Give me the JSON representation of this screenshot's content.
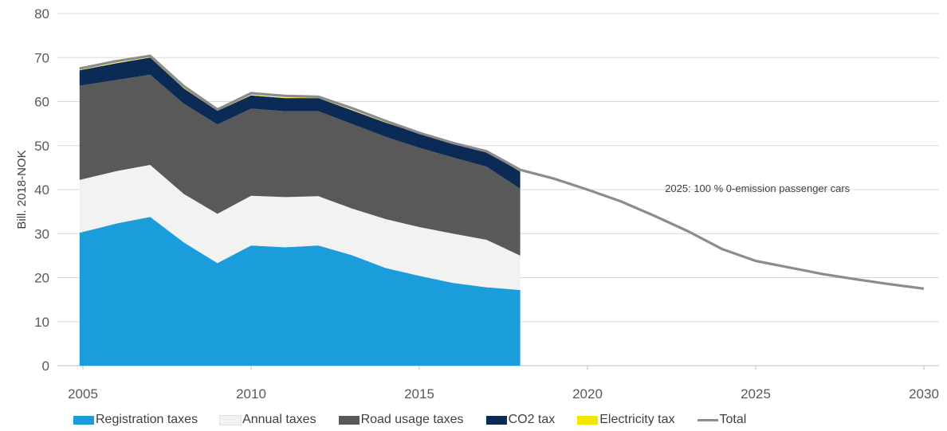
{
  "chart_data": {
    "type": "area",
    "title": "",
    "xlabel": "",
    "ylabel": "Bill. 2018-NOK",
    "xlim": [
      2005,
      2030
    ],
    "ylim": [
      0,
      80
    ],
    "x_ticks": [
      "2005",
      "2010",
      "2015",
      "2020",
      "2025",
      "2030"
    ],
    "y_ticks": [
      "0",
      "10",
      "20",
      "30",
      "40",
      "50",
      "60",
      "70",
      "80"
    ],
    "grid": "horizontal",
    "legend_position": "bottom",
    "stacked": true,
    "x": [
      2004.9,
      2006,
      2007,
      2008,
      2009,
      2010,
      2011,
      2012,
      2013,
      2014,
      2015,
      2016,
      2017,
      2018
    ],
    "series": [
      {
        "name": "Registration taxes",
        "color": "#1b9ddb",
        "values": [
          30.2,
          32.3,
          33.8,
          28.0,
          23.3,
          27.3,
          26.9,
          27.3,
          25.1,
          22.2,
          20.4,
          18.8,
          17.8,
          17.2
        ]
      },
      {
        "name": "Annual taxes",
        "color": "#f2f2f2",
        "values": [
          12.0,
          11.9,
          11.8,
          11.0,
          11.2,
          11.3,
          11.4,
          11.2,
          10.6,
          11.1,
          11.1,
          11.2,
          10.8,
          7.8
        ]
      },
      {
        "name": "Road usage taxes",
        "color": "#595959",
        "values": [
          21.4,
          20.7,
          20.5,
          20.5,
          20.3,
          19.8,
          19.5,
          19.3,
          19.2,
          18.7,
          18.0,
          17.3,
          16.6,
          15.2
        ]
      },
      {
        "name": "CO2 tax",
        "color": "#0b2a55",
        "values": [
          3.5,
          3.8,
          3.9,
          3.5,
          3.1,
          3.0,
          3.0,
          3.0,
          3.1,
          3.2,
          3.3,
          3.4,
          3.4,
          3.9
        ]
      },
      {
        "name": "Electricity tax",
        "color": "#f2e500",
        "values": [
          0.1,
          0.1,
          0.1,
          0.1,
          0.1,
          0.1,
          0.1,
          0.1,
          0.1,
          0.1,
          0.1,
          0.1,
          0.1,
          0.1
        ]
      }
    ],
    "total_line": {
      "name": "Total",
      "color": "#8c8c8c",
      "x": [
        2004.9,
        2006,
        2007,
        2008,
        2009,
        2010,
        2011,
        2012,
        2013,
        2014,
        2015,
        2016,
        2017,
        2018,
        2019,
        2020,
        2021,
        2022,
        2023,
        2024,
        2025,
        2026,
        2027,
        2028,
        2029,
        2030
      ],
      "values": [
        67.5,
        69.2,
        70.4,
        63.5,
        58.2,
        61.9,
        61.3,
        61.1,
        58.5,
        55.6,
        52.9,
        50.6,
        48.7,
        44.5,
        42.5,
        40.0,
        37.3,
        34.0,
        30.5,
        26.5,
        23.8,
        22.3,
        20.8,
        19.6,
        18.5,
        17.5
      ]
    },
    "annotations": [
      {
        "text": "2025: 100 % 0-emission passenger cars",
        "x": 2027.8,
        "y": 39.5
      }
    ]
  },
  "legend": [
    {
      "label": "Registration taxes",
      "color": "#1b9ddb",
      "kind": "box"
    },
    {
      "label": "Annual taxes",
      "color": "#f2f2f2",
      "kind": "box"
    },
    {
      "label": "Road usage taxes",
      "color": "#595959",
      "kind": "box"
    },
    {
      "label": "CO2 tax",
      "color": "#0b2a55",
      "kind": "box"
    },
    {
      "label": "Electricity tax",
      "color": "#f2e500",
      "kind": "box"
    },
    {
      "label": "Total",
      "color": "#8c8c8c",
      "kind": "line"
    }
  ]
}
